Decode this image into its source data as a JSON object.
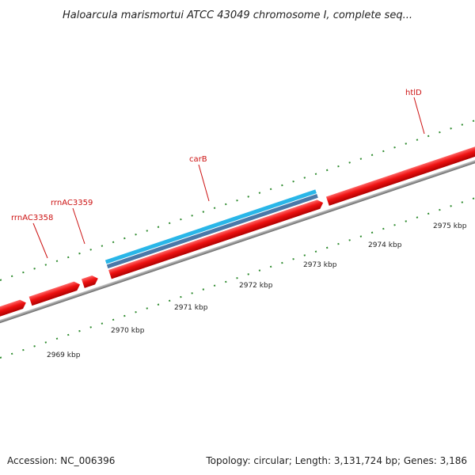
{
  "title": "Haloarcula marismortui ATCC 43049 chromosome I, complete seq...",
  "footer": {
    "accession": "Accession: NC_006396",
    "summary": "Topology: circular; Length: 3,131,724 bp; Genes: 3,186"
  },
  "genes": [
    {
      "name": "rrnAC3358",
      "label": "rrnAC3358"
    },
    {
      "name": "rrnAC3359",
      "label": "rrnAC3359"
    },
    {
      "name": "carB",
      "label": "carB"
    },
    {
      "name": "htlD",
      "label": "htlD"
    }
  ],
  "scale": {
    "unit": "kbp",
    "ticks": [
      "2969 kbp",
      "2970 kbp",
      "2971 kbp",
      "2972 kbp",
      "2973 kbp",
      "2974 kbp",
      "2975 kbp"
    ]
  },
  "colors": {
    "forward_gene": "#ee1111",
    "cds_light": "#29b6e8",
    "cds_dark": "#4a78a8",
    "backbone": "#888888",
    "tick": "#2e8b2e",
    "label": "#cc1111"
  }
}
